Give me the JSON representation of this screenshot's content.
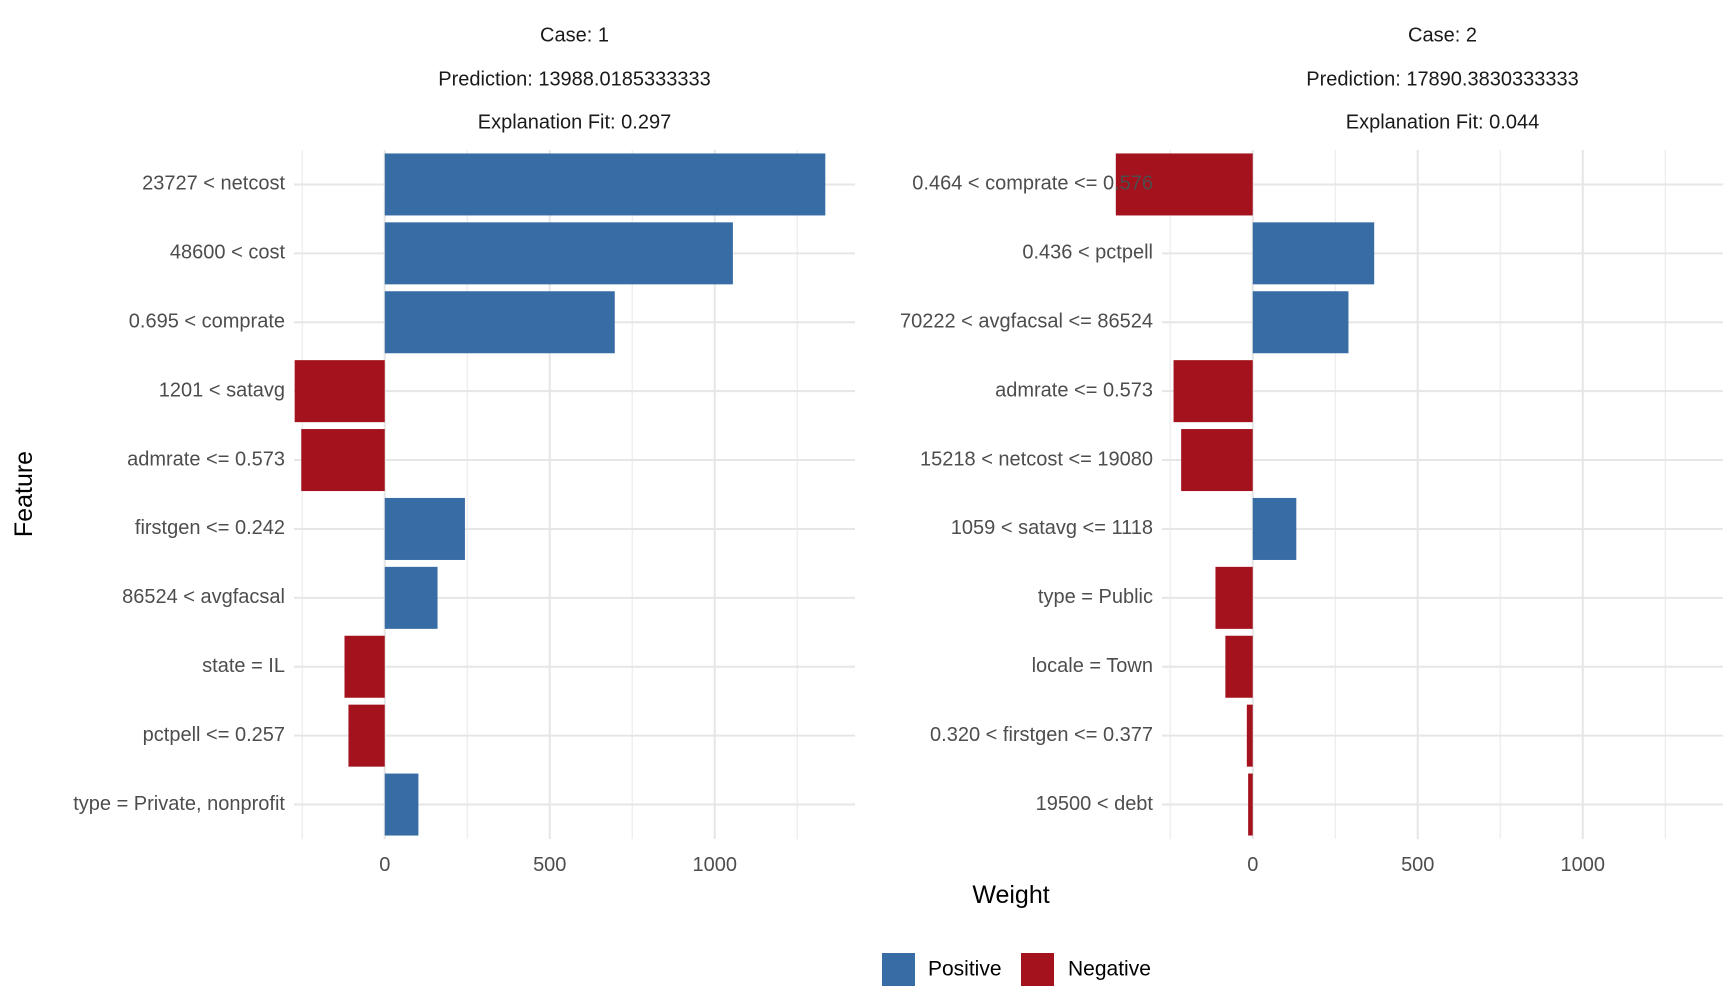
{
  "chart_data": {
    "type": "bar",
    "orientation": "horizontal",
    "xlabel": "Weight",
    "ylabel": "Feature",
    "xlim": [
      -275,
      1425
    ],
    "x_ticks": [
      0,
      500,
      1000
    ],
    "grid": true,
    "legend": {
      "position": "bottom",
      "entries": [
        {
          "key": "positive",
          "label": "Positive",
          "color": "#386CA5"
        },
        {
          "key": "negative",
          "label": "Negative",
          "color": "#A3121D"
        }
      ]
    },
    "panels": [
      {
        "titles": [
          "Case: 1",
          "Prediction: 13988.0185333333",
          "Explanation Fit: 0.297"
        ],
        "categories": [
          "23727 < netcost",
          "48600 < cost",
          "0.695 < comprate",
          "1201 < satavg",
          "admrate <= 0.573",
          "firstgen <= 0.242",
          "86524 < avgfacsal",
          "state = IL",
          "pctpell <= 0.257",
          "type = Private, nonprofit"
        ],
        "values": [
          1335,
          1055,
          697,
          -273,
          -253,
          243,
          160,
          -122,
          -110,
          102
        ]
      },
      {
        "titles": [
          "Case: 2",
          "Prediction: 17890.3830333333",
          "Explanation Fit: 0.044"
        ],
        "categories": [
          "0.464 < comprate <= 0.576",
          "0.436 < pctpell",
          "70222 < avgfacsal <= 86524",
          "admrate <= 0.573",
          "15218 < netcost <= 19080",
          "1059 < satavg <= 1118",
          "type = Public",
          "locale = Town",
          "0.320 < firstgen <= 0.377",
          "19500 < debt"
        ],
        "values": [
          -415,
          368,
          290,
          -240,
          -217,
          132,
          -113,
          -83,
          -18,
          -14
        ]
      }
    ]
  }
}
